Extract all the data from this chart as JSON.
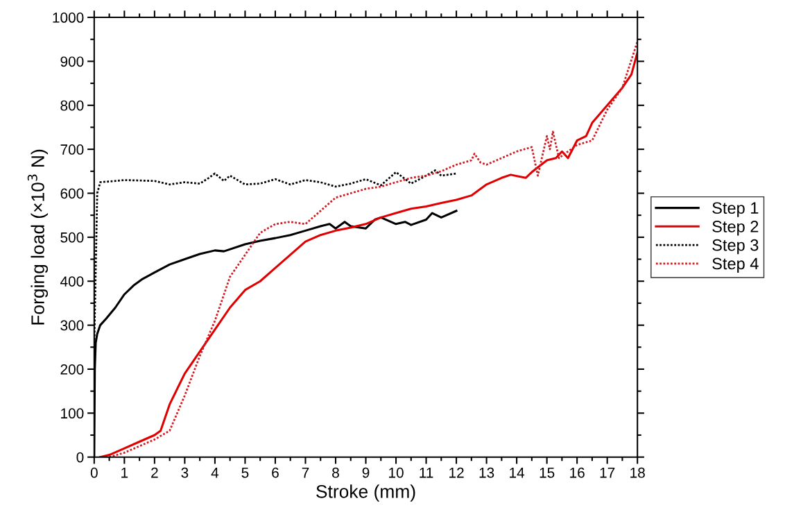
{
  "chart_data": {
    "type": "line",
    "xlabel": "Stroke (mm)",
    "ylabel": "Forging load (×10$^{3}$ N)",
    "xlim": [
      0,
      18
    ],
    "ylim": [
      0,
      1000
    ],
    "xticks": [
      0,
      1,
      2,
      3,
      4,
      5,
      6,
      7,
      8,
      9,
      10,
      11,
      12,
      13,
      14,
      15,
      16,
      17,
      18
    ],
    "yticks": [
      0,
      100,
      200,
      300,
      400,
      500,
      600,
      700,
      800,
      900,
      1000
    ],
    "grid": false,
    "legend": "right",
    "series": [
      {
        "name": "Step 1",
        "color": "#000000",
        "line_style": "solid",
        "x": [
          0,
          0.02,
          0.05,
          0.1,
          0.2,
          0.4,
          0.7,
          1,
          1.3,
          1.6,
          2,
          2.5,
          3,
          3.5,
          4,
          4.3,
          5,
          5.5,
          6,
          6.5,
          7,
          7.5,
          7.8,
          8,
          8.3,
          8.5,
          9,
          9.3,
          9.5,
          10,
          10.3,
          10.5,
          11,
          11.2,
          11.5,
          12
        ],
        "values": [
          0,
          200,
          260,
          280,
          300,
          315,
          340,
          370,
          390,
          405,
          420,
          438,
          450,
          462,
          470,
          468,
          484,
          492,
          498,
          505,
          515,
          525,
          530,
          520,
          535,
          525,
          520,
          540,
          545,
          530,
          535,
          528,
          540,
          555,
          545,
          560
        ]
      },
      {
        "name": "Step 2",
        "color": "#e00000",
        "line_style": "solid",
        "x": [
          0.2,
          0.5,
          1,
          1.5,
          2,
          2.2,
          2.5,
          3,
          3.5,
          4,
          4.5,
          5,
          5.5,
          6,
          6.5,
          7,
          7.5,
          8,
          8.5,
          9,
          9.5,
          10,
          10.5,
          11,
          11.5,
          12,
          12.5,
          13,
          13.5,
          13.8,
          14.3,
          14.5,
          15,
          15.3,
          15.5,
          15.7,
          16,
          16.3,
          16.5,
          17,
          17.5,
          17.8,
          18
        ],
        "values": [
          0,
          5,
          20,
          35,
          50,
          60,
          120,
          190,
          240,
          290,
          340,
          380,
          400,
          430,
          460,
          490,
          505,
          515,
          522,
          530,
          545,
          555,
          565,
          570,
          578,
          585,
          595,
          620,
          635,
          642,
          635,
          648,
          675,
          680,
          695,
          680,
          720,
          730,
          760,
          800,
          840,
          870,
          920
        ]
      },
      {
        "name": "Step 3",
        "color": "#000000",
        "line_style": "dotted",
        "x": [
          0,
          0.1,
          0.2,
          1,
          2,
          2.5,
          3,
          3.5,
          3.8,
          4,
          4.3,
          4.5,
          5,
          5.5,
          6,
          6.5,
          7,
          7.5,
          8,
          8.5,
          9,
          9.5,
          10,
          10.5,
          11,
          11.3,
          11.5,
          12
        ],
        "values": [
          250,
          600,
          625,
          630,
          628,
          620,
          625,
          622,
          635,
          645,
          628,
          640,
          620,
          622,
          632,
          620,
          630,
          625,
          615,
          622,
          632,
          618,
          648,
          622,
          640,
          652,
          640,
          645
        ]
      },
      {
        "name": "Step 4",
        "color": "#d01c24",
        "line_style": "dotted",
        "x": [
          0.5,
          1,
          1.5,
          2,
          2.5,
          3,
          3.5,
          4,
          4.5,
          5,
          5.5,
          6,
          6.5,
          7,
          7.5,
          8,
          8.5,
          9,
          9.5,
          10,
          10.5,
          11,
          11.5,
          12,
          12.5,
          12.6,
          12.8,
          13,
          13.5,
          14,
          14.5,
          14.7,
          15,
          15.1,
          15.2,
          15.4,
          16,
          16.5,
          17,
          17.5,
          18
        ],
        "values": [
          0,
          10,
          25,
          40,
          60,
          140,
          230,
          310,
          410,
          460,
          510,
          530,
          535,
          530,
          560,
          590,
          600,
          610,
          615,
          625,
          635,
          640,
          650,
          665,
          675,
          690,
          670,
          665,
          680,
          695,
          705,
          640,
          730,
          700,
          740,
          680,
          710,
          720,
          790,
          840,
          945
        ]
      }
    ]
  }
}
